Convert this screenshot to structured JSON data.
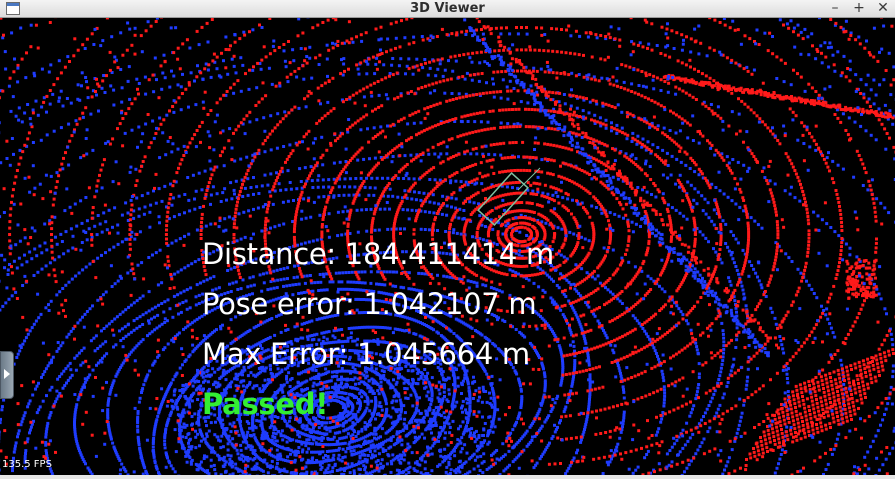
{
  "window": {
    "title": "3D Viewer",
    "controls": {
      "minimize": "–",
      "maximize": "+",
      "close": "✕"
    },
    "app_icon": "window-icon"
  },
  "viewport": {
    "background_color": "#000000",
    "point_colors": {
      "source": "#1f3cff",
      "target": "#ff1a1a",
      "marker": "#7fbfa0"
    },
    "overlay": {
      "distance": "Distance: 184.411414 m",
      "pose_error": "Pose error: 1.042107 m",
      "max_error": "Max Error: 1.045664 m",
      "result": "Passed!",
      "result_color": "#33ee33"
    },
    "fps": "135.5 FPS",
    "side_handle_icon": "expand-arrow-icon"
  }
}
